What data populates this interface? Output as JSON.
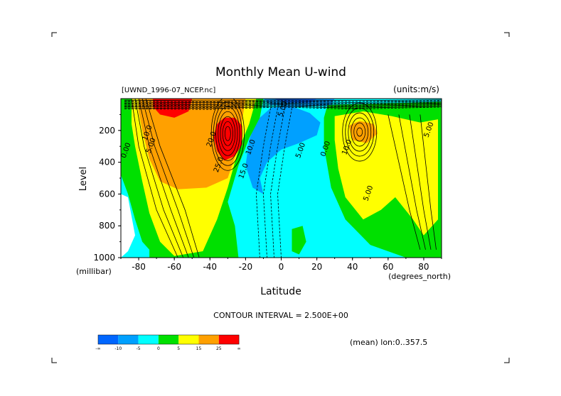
{
  "chart_data": {
    "type": "heatmap",
    "title": "Monthly Mean U-wind",
    "dataset_label": "[UWND_1996-07_NCEP.nc]",
    "units_label": "(units:m/s)",
    "xlabel": "Latitude",
    "x_units": "(degrees_north)",
    "ylabel": "Level",
    "y_units": "(millibar)",
    "xlim": [
      -90,
      90
    ],
    "ylim": [
      1000,
      0
    ],
    "x_ticks": [
      -80,
      -60,
      -40,
      -20,
      0,
      20,
      40,
      60,
      80
    ],
    "x_tick_labels": [
      "-80",
      "-60",
      "-40",
      "-20",
      "0",
      "20",
      "40",
      "60",
      "80"
    ],
    "y_ticks": [
      200,
      400,
      600,
      800,
      1000
    ],
    "y_tick_labels": [
      "200",
      "400",
      "600",
      "800",
      "1000"
    ],
    "contour_interval_text": "CONTOUR INTERVAL = 2.500E+00",
    "mean_note": "(mean) lon:0..357.5",
    "colorbar": {
      "colors": [
        "#0066ff",
        "#00a0ff",
        "#00ffff",
        "#00e000",
        "#ffff00",
        "#ffa000",
        "#ff0000"
      ],
      "labels": [
        "-∞",
        "-10",
        "-5",
        "0",
        "5",
        "15",
        "25",
        "∞"
      ]
    },
    "contour_labels": [
      {
        "text": "10.0",
        "lat": -74,
        "p": 220
      },
      {
        "text": "5.00",
        "lat": -72,
        "p": 300
      },
      {
        "text": "0.00",
        "lat": -86,
        "p": 330
      },
      {
        "text": "20.0",
        "lat": -38,
        "p": 260
      },
      {
        "text": "25.0",
        "lat": -34,
        "p": 420
      },
      {
        "text": "15.0",
        "lat": -20,
        "p": 460
      },
      {
        "text": "10.0",
        "lat": -16,
        "p": 310
      },
      {
        "text": "5.00",
        "lat": 12,
        "p": 330
      },
      {
        "text": "0.00",
        "lat": 26,
        "p": 320
      },
      {
        "text": "10.0",
        "lat": 38,
        "p": 310
      },
      {
        "text": "5.00",
        "lat": 50,
        "p": 600
      },
      {
        "text": "5.00",
        "lat": 84,
        "p": 200
      },
      {
        "text": "5.00",
        "lat": 2,
        "p": 70
      }
    ]
  }
}
